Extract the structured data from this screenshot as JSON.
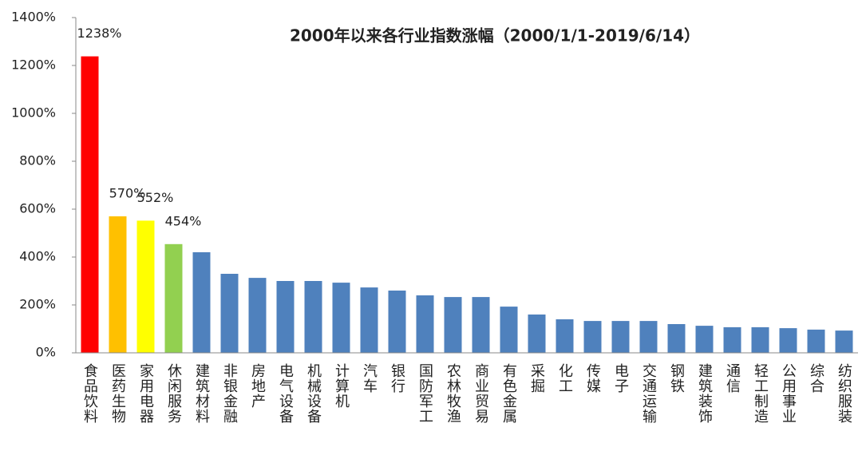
{
  "chart_data": {
    "type": "bar",
    "title": "2000年以来各行业指数涨幅（2000/1/1-2019/6/14）",
    "categories": [
      "食品饮料",
      "医药生物",
      "家用电器",
      "休闲服务",
      "建筑材料",
      "非银金融",
      "房地产",
      "电气设备",
      "机械设备",
      "计算机",
      "汽车",
      "银行",
      "国防军工",
      "农林牧渔",
      "商业贸易",
      "有色金属",
      "采掘",
      "化工",
      "传媒",
      "电子",
      "交通运输",
      "钢铁",
      "建筑装饰",
      "通信",
      "轻工制造",
      "公用事业",
      "综合",
      "纺织服装"
    ],
    "values": [
      1238,
      570,
      552,
      454,
      420,
      330,
      313,
      300,
      300,
      293,
      273,
      260,
      240,
      233,
      233,
      193,
      160,
      140,
      133,
      133,
      133,
      120,
      113,
      107,
      107,
      103,
      97,
      93
    ],
    "value_labels": [
      "1238%",
      "570%",
      "552%",
      "454%",
      null,
      null,
      null,
      null,
      null,
      null,
      null,
      null,
      null,
      null,
      null,
      null,
      null,
      null,
      null,
      null,
      null,
      null,
      null,
      null,
      null,
      null,
      null,
      null
    ],
    "colors": [
      "#ff0000",
      "#ffc000",
      "#ffff00",
      "#92d050",
      "#4f81bd",
      "#4f81bd",
      "#4f81bd",
      "#4f81bd",
      "#4f81bd",
      "#4f81bd",
      "#4f81bd",
      "#4f81bd",
      "#4f81bd",
      "#4f81bd",
      "#4f81bd",
      "#4f81bd",
      "#4f81bd",
      "#4f81bd",
      "#4f81bd",
      "#4f81bd",
      "#4f81bd",
      "#4f81bd",
      "#4f81bd",
      "#4f81bd",
      "#4f81bd",
      "#4f81bd",
      "#4f81bd",
      "#4f81bd"
    ],
    "ylim": [
      0,
      1400
    ],
    "yticks": [
      {
        "value": 0,
        "label": "0%"
      },
      {
        "value": 200,
        "label": "200%"
      },
      {
        "value": 400,
        "label": "400%"
      },
      {
        "value": 600,
        "label": "600%"
      },
      {
        "value": 800,
        "label": "800%"
      },
      {
        "value": 1000,
        "label": "1000%"
      },
      {
        "value": 1200,
        "label": "1200%"
      },
      {
        "value": 1400,
        "label": "1400%"
      }
    ],
    "grid": false
  }
}
